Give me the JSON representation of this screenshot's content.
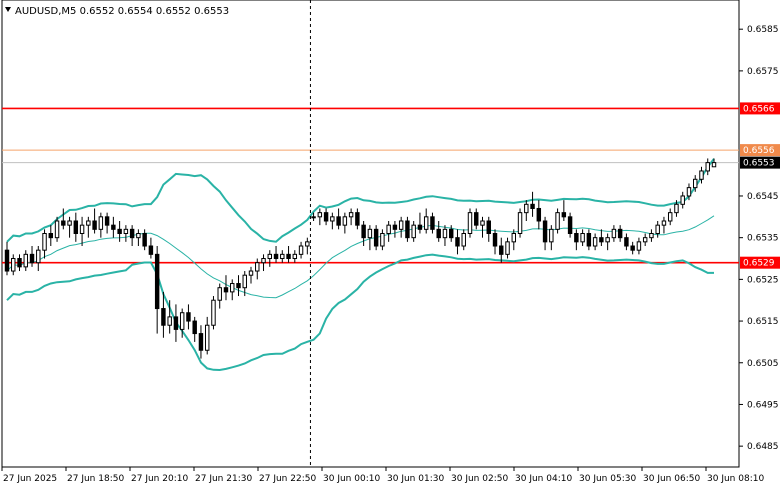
{
  "header": {
    "symbol_line": "AUDUSD,M5  0.6552 0.6554 0.6552 0.6553"
  },
  "chart_data": {
    "type": "candlestick",
    "symbol": "AUDUSD",
    "timeframe": "M5",
    "ylim": [
      0.648,
      0.6592
    ],
    "y_ticks": [
      "0.6585",
      "0.6575",
      "0.6545",
      "0.6535",
      "0.6525",
      "0.6515",
      "0.6505",
      "0.6495",
      "0.6485"
    ],
    "x_ticks": [
      "27 Jun 2025",
      "27 Jun 18:50",
      "27 Jun 20:10",
      "27 Jun 21:30",
      "27 Jun 22:50",
      "30 Jun 00:10",
      "30 Jun 01:30",
      "30 Jun 02:50",
      "30 Jun 04:10",
      "30 Jun 05:30",
      "30 Jun 06:50",
      "30 Jun 08:10"
    ],
    "levels": [
      {
        "price": 0.6566,
        "label": "0.6566",
        "color": "#ff0000",
        "style": "solid"
      },
      {
        "price": 0.6556,
        "label": "0.6556",
        "color": "#f5a36a",
        "style": "solid"
      },
      {
        "price": 0.6529,
        "label": "0.6529",
        "color": "#ff0000",
        "style": "solid"
      }
    ],
    "current_price": {
      "price": 0.6553,
      "label": "0.6553",
      "color": "#c0c0c0"
    },
    "session_divider_index": 49,
    "bollinger_color": "#2ab3a6",
    "candle_color": "#000000",
    "candles": [
      [
        0.6532,
        0.6534,
        0.6526,
        0.6527
      ],
      [
        0.6527,
        0.6531,
        0.6526,
        0.653
      ],
      [
        0.653,
        0.6531,
        0.6527,
        0.6528
      ],
      [
        0.6528,
        0.6532,
        0.6527,
        0.6531
      ],
      [
        0.6531,
        0.6533,
        0.6528,
        0.6529
      ],
      [
        0.6529,
        0.6533,
        0.6527,
        0.6532
      ],
      [
        0.6532,
        0.6537,
        0.653,
        0.6536
      ],
      [
        0.6536,
        0.6538,
        0.6533,
        0.6535
      ],
      [
        0.6535,
        0.654,
        0.6534,
        0.6539
      ],
      [
        0.6539,
        0.6542,
        0.6537,
        0.6538
      ],
      [
        0.6538,
        0.654,
        0.6535,
        0.6539
      ],
      [
        0.6539,
        0.6541,
        0.6534,
        0.6536
      ],
      [
        0.6536,
        0.654,
        0.6533,
        0.6538
      ],
      [
        0.6538,
        0.654,
        0.6535,
        0.6539
      ],
      [
        0.6539,
        0.6542,
        0.6536,
        0.6537
      ],
      [
        0.6537,
        0.6541,
        0.6535,
        0.654
      ],
      [
        0.654,
        0.6541,
        0.6536,
        0.6538
      ],
      [
        0.6538,
        0.654,
        0.6535,
        0.6537
      ],
      [
        0.6537,
        0.6539,
        0.6534,
        0.6536
      ],
      [
        0.6536,
        0.6538,
        0.6534,
        0.6537
      ],
      [
        0.6537,
        0.6538,
        0.6533,
        0.6535
      ],
      [
        0.6535,
        0.6537,
        0.6533,
        0.6536
      ],
      [
        0.6536,
        0.6537,
        0.6532,
        0.6533
      ],
      [
        0.6533,
        0.6535,
        0.653,
        0.6531
      ],
      [
        0.6531,
        0.6533,
        0.6512,
        0.6518
      ],
      [
        0.6518,
        0.6522,
        0.6511,
        0.6514
      ],
      [
        0.6514,
        0.652,
        0.6512,
        0.6516
      ],
      [
        0.6516,
        0.6519,
        0.651,
        0.6513
      ],
      [
        0.6513,
        0.6518,
        0.6511,
        0.6517
      ],
      [
        0.6517,
        0.6519,
        0.6513,
        0.6515
      ],
      [
        0.6515,
        0.6516,
        0.651,
        0.6512
      ],
      [
        0.6512,
        0.6514,
        0.6506,
        0.6508
      ],
      [
        0.6508,
        0.6516,
        0.6507,
        0.6514
      ],
      [
        0.6514,
        0.6521,
        0.6513,
        0.652
      ],
      [
        0.652,
        0.6524,
        0.6518,
        0.6523
      ],
      [
        0.6523,
        0.6526,
        0.652,
        0.6522
      ],
      [
        0.6522,
        0.6525,
        0.652,
        0.6524
      ],
      [
        0.6524,
        0.6526,
        0.6521,
        0.6523
      ],
      [
        0.6523,
        0.6527,
        0.6521,
        0.6526
      ],
      [
        0.6526,
        0.6528,
        0.6524,
        0.6527
      ],
      [
        0.6527,
        0.653,
        0.6525,
        0.6529
      ],
      [
        0.6529,
        0.6531,
        0.6527,
        0.653
      ],
      [
        0.653,
        0.6532,
        0.6528,
        0.6531
      ],
      [
        0.6531,
        0.6533,
        0.6529,
        0.653
      ],
      [
        0.653,
        0.6532,
        0.6529,
        0.6531
      ],
      [
        0.6531,
        0.6533,
        0.6529,
        0.653
      ],
      [
        0.653,
        0.6532,
        0.6529,
        0.6531
      ],
      [
        0.6531,
        0.6534,
        0.653,
        0.6533
      ],
      [
        0.6533,
        0.6535,
        0.6531,
        0.6534
      ],
      [
        0.654,
        0.6541,
        0.6539,
        0.654
      ],
      [
        0.654,
        0.6542,
        0.6538,
        0.6541
      ],
      [
        0.6541,
        0.6542,
        0.6538,
        0.6539
      ],
      [
        0.6539,
        0.6541,
        0.6537,
        0.654
      ],
      [
        0.654,
        0.6542,
        0.6537,
        0.6538
      ],
      [
        0.6538,
        0.6541,
        0.6536,
        0.654
      ],
      [
        0.654,
        0.6542,
        0.6538,
        0.6541
      ],
      [
        0.6541,
        0.6542,
        0.6537,
        0.6538
      ],
      [
        0.6538,
        0.6539,
        0.6533,
        0.6535
      ],
      [
        0.6535,
        0.6538,
        0.6532,
        0.6537
      ],
      [
        0.6537,
        0.6538,
        0.6532,
        0.6533
      ],
      [
        0.6533,
        0.6537,
        0.6532,
        0.6536
      ],
      [
        0.6536,
        0.6539,
        0.6534,
        0.6538
      ],
      [
        0.6538,
        0.6539,
        0.6535,
        0.6537
      ],
      [
        0.6537,
        0.654,
        0.6535,
        0.6539
      ],
      [
        0.6539,
        0.654,
        0.6534,
        0.6535
      ],
      [
        0.6535,
        0.6539,
        0.6534,
        0.6538
      ],
      [
        0.6538,
        0.6541,
        0.6536,
        0.6537
      ],
      [
        0.6537,
        0.6542,
        0.6536,
        0.654
      ],
      [
        0.654,
        0.6541,
        0.6536,
        0.6537
      ],
      [
        0.6537,
        0.6539,
        0.6534,
        0.6535
      ],
      [
        0.6535,
        0.6538,
        0.6533,
        0.6537
      ],
      [
        0.6537,
        0.6538,
        0.6534,
        0.6535
      ],
      [
        0.6535,
        0.6537,
        0.6531,
        0.6533
      ],
      [
        0.6533,
        0.6537,
        0.6532,
        0.6536
      ],
      [
        0.6536,
        0.6542,
        0.6535,
        0.6541
      ],
      [
        0.6541,
        0.6542,
        0.6537,
        0.6538
      ],
      [
        0.6538,
        0.654,
        0.6535,
        0.6539
      ],
      [
        0.6539,
        0.654,
        0.6534,
        0.6536
      ],
      [
        0.6536,
        0.6537,
        0.6531,
        0.6533
      ],
      [
        0.6533,
        0.6535,
        0.6529,
        0.6531
      ],
      [
        0.6531,
        0.6535,
        0.653,
        0.6534
      ],
      [
        0.6534,
        0.6537,
        0.6532,
        0.6536
      ],
      [
        0.6536,
        0.6542,
        0.6535,
        0.6541
      ],
      [
        0.6541,
        0.6544,
        0.6539,
        0.6543
      ],
      [
        0.6543,
        0.6546,
        0.654,
        0.6542
      ],
      [
        0.6542,
        0.6544,
        0.6537,
        0.6539
      ],
      [
        0.6539,
        0.654,
        0.6532,
        0.6534
      ],
      [
        0.6534,
        0.6538,
        0.6532,
        0.6537
      ],
      [
        0.6537,
        0.6542,
        0.6536,
        0.6541
      ],
      [
        0.6541,
        0.6544,
        0.6539,
        0.654
      ],
      [
        0.654,
        0.6541,
        0.6535,
        0.6536
      ],
      [
        0.6536,
        0.6537,
        0.6532,
        0.6534
      ],
      [
        0.6534,
        0.6537,
        0.6533,
        0.6536
      ],
      [
        0.6536,
        0.6537,
        0.6532,
        0.6533
      ],
      [
        0.6533,
        0.6536,
        0.6532,
        0.6535
      ],
      [
        0.6535,
        0.6537,
        0.6533,
        0.6534
      ],
      [
        0.6534,
        0.6536,
        0.6532,
        0.6535
      ],
      [
        0.6535,
        0.6538,
        0.6534,
        0.6537
      ],
      [
        0.6537,
        0.6538,
        0.6534,
        0.6535
      ],
      [
        0.6535,
        0.6536,
        0.6532,
        0.6533
      ],
      [
        0.6533,
        0.6534,
        0.6531,
        0.6532
      ],
      [
        0.6532,
        0.6535,
        0.6531,
        0.6534
      ],
      [
        0.6534,
        0.6536,
        0.6533,
        0.6535
      ],
      [
        0.6535,
        0.6537,
        0.6534,
        0.6536
      ],
      [
        0.6536,
        0.6539,
        0.6535,
        0.6538
      ],
      [
        0.6538,
        0.654,
        0.6536,
        0.6539
      ],
      [
        0.6539,
        0.6542,
        0.6538,
        0.6541
      ],
      [
        0.6541,
        0.6544,
        0.654,
        0.6543
      ],
      [
        0.6543,
        0.6546,
        0.6542,
        0.6545
      ],
      [
        0.6545,
        0.6548,
        0.6544,
        0.6547
      ],
      [
        0.6547,
        0.655,
        0.6546,
        0.6549
      ],
      [
        0.6549,
        0.6552,
        0.6548,
        0.6551
      ],
      [
        0.6551,
        0.6554,
        0.655,
        0.6553
      ],
      [
        0.6552,
        0.6554,
        0.6552,
        0.6553
      ]
    ]
  }
}
